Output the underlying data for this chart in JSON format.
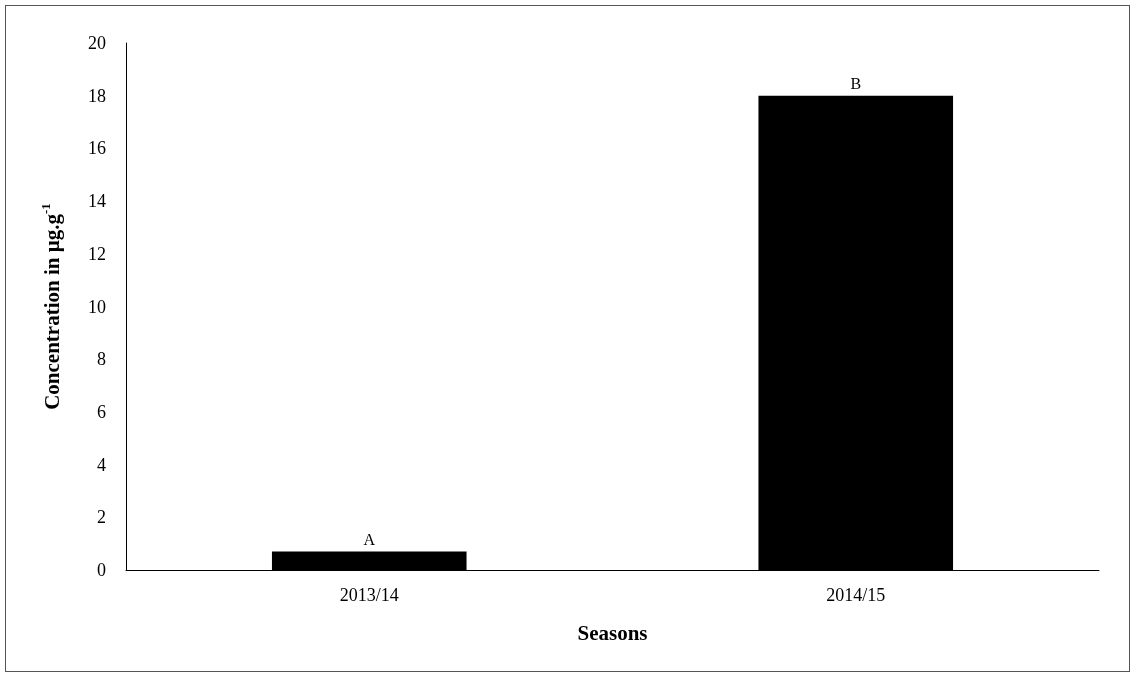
{
  "chart_data": {
    "type": "bar",
    "xlabel": "Seasons",
    "ylabel": "Concentration in µg.g$^{-1}$",
    "categories": [
      "2013/14",
      "2014/15"
    ],
    "values": [
      0.7,
      18
    ],
    "color": "#000000",
    "ylim": [
      0,
      20
    ],
    "yticks": [
      0,
      2,
      4,
      6,
      8,
      10,
      12,
      14,
      16,
      18,
      20
    ],
    "annotations": [
      {
        "text": "A",
        "x": "2013/14",
        "y": 0.7
      },
      {
        "text": "B",
        "x": "2014/15",
        "y": 18
      }
    ]
  }
}
